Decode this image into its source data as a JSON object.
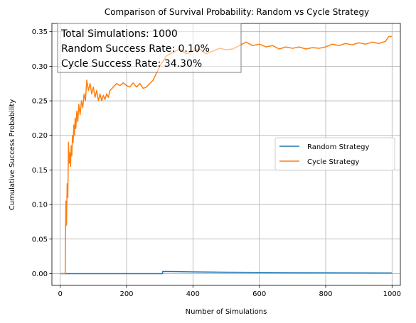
{
  "chart_data": {
    "type": "line",
    "title": "Comparison of Survival Probability: Random vs Cycle Strategy",
    "xlabel": "Number of Simulations",
    "ylabel": "Cumulative Success Probability",
    "xlim": [
      -25,
      1025
    ],
    "ylim": [
      -0.017,
      0.362
    ],
    "xticks": [
      0,
      200,
      400,
      600,
      800,
      1000
    ],
    "yticks": [
      0.0,
      0.05,
      0.1,
      0.15,
      0.2,
      0.25,
      0.3,
      0.35
    ],
    "ytick_labels": [
      "0.00",
      "0.05",
      "0.10",
      "0.15",
      "0.20",
      "0.25",
      "0.30",
      "0.35"
    ],
    "grid": true,
    "legend_position": "center-right",
    "annotation": {
      "lines": [
        "Total Simulations: 1000",
        "Random Success Rate: 0.10%",
        "Cycle Success Rate: 34.30%"
      ]
    },
    "series": [
      {
        "name": "Random Strategy",
        "color": "#1f77b4",
        "x": [
          1,
          50,
          100,
          150,
          200,
          250,
          300,
          308,
          309,
          350,
          400,
          450,
          500,
          600,
          700,
          800,
          900,
          1000
        ],
        "y": [
          0,
          0,
          0,
          0,
          0,
          0,
          0,
          0,
          0.0032,
          0.0029,
          0.0025,
          0.0022,
          0.002,
          0.0017,
          0.0014,
          0.0012,
          0.0011,
          0.001
        ]
      },
      {
        "name": "Cycle Strategy",
        "color": "#ff7f0e",
        "x": [
          1,
          15,
          17,
          19,
          21,
          23,
          25,
          27,
          29,
          31,
          33,
          35,
          37,
          39,
          41,
          43,
          45,
          47,
          50,
          53,
          56,
          60,
          64,
          68,
          72,
          76,
          80,
          85,
          90,
          95,
          100,
          105,
          110,
          115,
          120,
          125,
          130,
          135,
          140,
          145,
          150,
          160,
          170,
          180,
          190,
          200,
          210,
          220,
          230,
          240,
          250,
          260,
          270,
          280,
          290,
          300,
          320,
          340,
          360,
          380,
          400,
          420,
          440,
          460,
          480,
          500,
          520,
          540,
          560,
          580,
          600,
          620,
          640,
          660,
          680,
          700,
          720,
          740,
          760,
          780,
          800,
          820,
          840,
          860,
          880,
          900,
          920,
          940,
          960,
          980,
          990,
          1000
        ],
        "y": [
          0,
          0,
          0.105,
          0.07,
          0.13,
          0.11,
          0.19,
          0.16,
          0.175,
          0.155,
          0.185,
          0.17,
          0.2,
          0.19,
          0.215,
          0.2,
          0.225,
          0.21,
          0.235,
          0.22,
          0.245,
          0.23,
          0.25,
          0.24,
          0.26,
          0.25,
          0.28,
          0.265,
          0.275,
          0.26,
          0.27,
          0.255,
          0.265,
          0.25,
          0.26,
          0.25,
          0.258,
          0.252,
          0.26,
          0.255,
          0.265,
          0.27,
          0.275,
          0.272,
          0.276,
          0.272,
          0.27,
          0.276,
          0.27,
          0.275,
          0.268,
          0.27,
          0.275,
          0.28,
          0.29,
          0.3,
          0.315,
          0.32,
          0.325,
          0.318,
          0.322,
          0.325,
          0.318,
          0.322,
          0.326,
          0.324,
          0.325,
          0.33,
          0.335,
          0.33,
          0.332,
          0.328,
          0.33,
          0.325,
          0.328,
          0.326,
          0.328,
          0.325,
          0.327,
          0.326,
          0.328,
          0.332,
          0.33,
          0.333,
          0.331,
          0.334,
          0.332,
          0.335,
          0.333,
          0.336,
          0.343,
          0.343
        ]
      }
    ]
  }
}
